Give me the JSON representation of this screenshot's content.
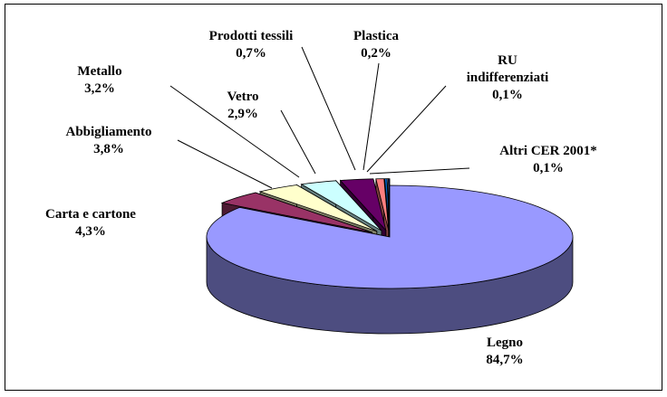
{
  "chart_data": {
    "type": "pie",
    "categories": [
      "Legno",
      "Carta e cartone",
      "Abbigliamento",
      "Metallo",
      "Vetro",
      "Prodotti tessili",
      "Plastica",
      "RU indifferenziati",
      "Altri CER 2001*"
    ],
    "values": [
      84.7,
      4.3,
      3.8,
      3.2,
      2.9,
      0.7,
      0.2,
      0.1,
      0.1
    ],
    "value_labels": [
      "84,7%",
      "4,3%",
      "3,8%",
      "3,2%",
      "2,9%",
      "0,7%",
      "0,2%",
      "0,1%",
      "0,1%"
    ],
    "colors": [
      "#9999ff",
      "#993366",
      "#ffffcc",
      "#ccffff",
      "#660066",
      "#ff8080",
      "#0066cc",
      "#ccccff",
      "#000080"
    ]
  }
}
